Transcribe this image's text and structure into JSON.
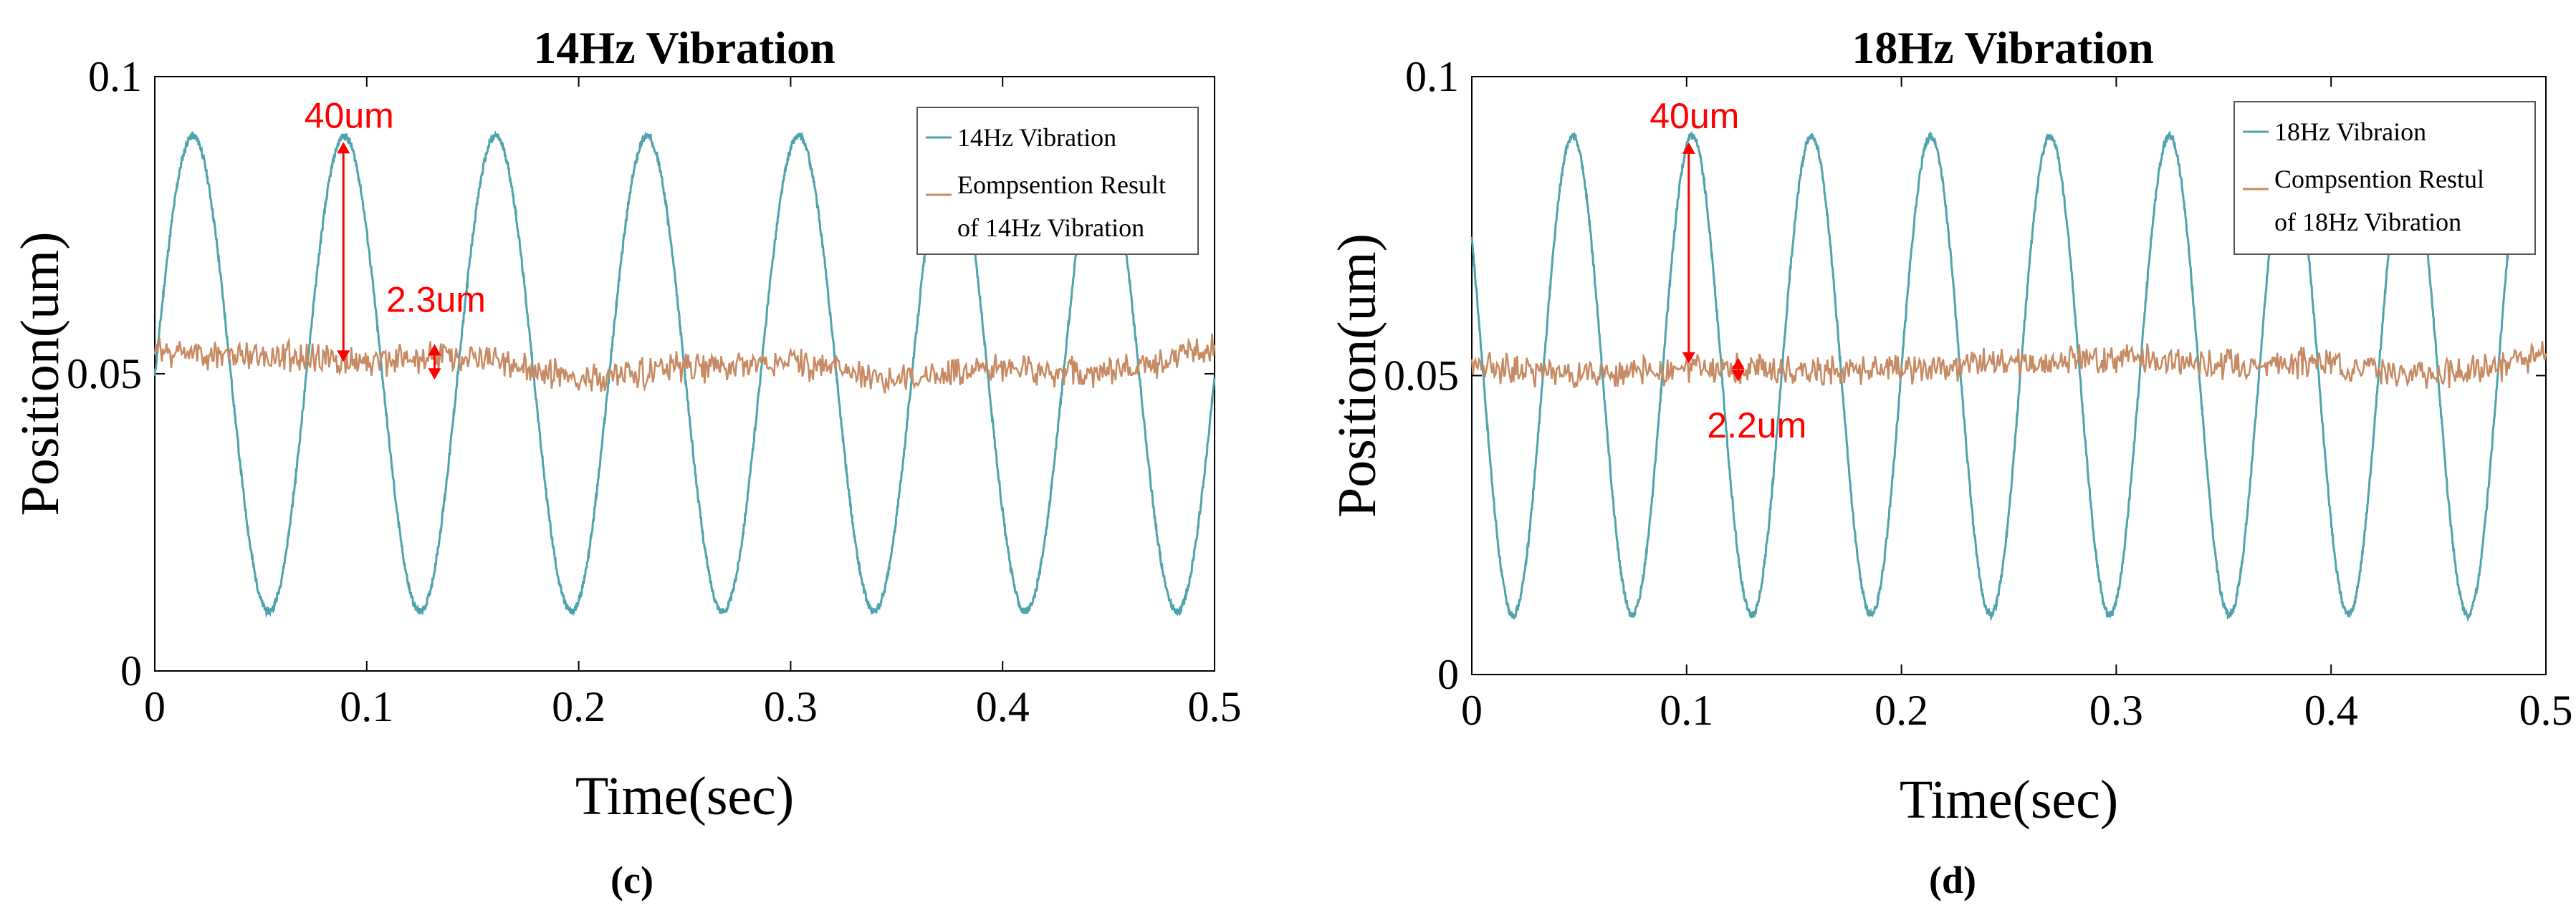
{
  "figure": {
    "panels": [
      "(c)",
      "(d)"
    ]
  },
  "colors": {
    "vibration": "#4ea3ad",
    "compensation": "#c78a63",
    "annotation": "#ff0000",
    "axis": "#000000"
  },
  "chart_data": [
    {
      "type": "line",
      "title": "14Hz Vibration",
      "xlabel": "Time(sec)",
      "ylabel": "Position(um)",
      "xlim": [
        0,
        0.5
      ],
      "ylim": [
        0,
        0.1
      ],
      "xticks": [
        "0",
        "0.1",
        "0.2",
        "0.3",
        "0.4",
        "0.5"
      ],
      "yticks": [
        "0",
        "0.05",
        "0.1"
      ],
      "legend": {
        "placement": "top-right",
        "entries": [
          "14Hz Vibration",
          "Eompsention Result",
          "of 14Hz Vibration"
        ]
      },
      "series": [
        {
          "name": "14Hz Vibration",
          "kind": "sine",
          "frequency_hz": 14,
          "center": 0.05,
          "amplitude": 0.04,
          "peak_time": 0.018,
          "x_start": 0,
          "x_end": 0.5
        },
        {
          "name": "Eompsention Result of 14Hz Vibration",
          "kind": "noise",
          "center": 0.052,
          "x_start": 0,
          "x_end": 0.5,
          "points": [
            [
              0,
              0.054
            ],
            [
              0.05,
              0.053
            ],
            [
              0.1,
              0.052
            ],
            [
              0.15,
              0.053
            ],
            [
              0.2,
              0.049
            ],
            [
              0.25,
              0.051
            ],
            [
              0.3,
              0.052
            ],
            [
              0.35,
              0.049
            ],
            [
              0.4,
              0.051
            ],
            [
              0.45,
              0.05
            ],
            [
              0.5,
              0.054
            ]
          ]
        }
      ],
      "annotations": [
        {
          "text": "40um",
          "x": 0.089,
          "y_from": 0.052,
          "y_to": 0.089
        },
        {
          "text": "2.3um",
          "x": 0.132,
          "y_from": 0.049,
          "y_to": 0.055
        }
      ]
    },
    {
      "type": "line",
      "title": "18Hz Vibration",
      "xlabel": "Time(sec)",
      "ylabel": "Position(um)",
      "xlim": [
        0,
        0.5
      ],
      "ylim": [
        0,
        0.1
      ],
      "xticks": [
        "0",
        "0.1",
        "0.2",
        "0.3",
        "0.4",
        "0.5"
      ],
      "yticks": [
        "0",
        "0.05",
        "0.1"
      ],
      "legend": {
        "placement": "top-right",
        "entries": [
          "18Hz Vibraion",
          "Compsention Restul",
          "of 18Hz Vibration"
        ]
      },
      "series": [
        {
          "name": "18Hz Vibraion",
          "kind": "sine",
          "frequency_hz": 18,
          "center": 0.05,
          "amplitude": 0.04,
          "peak_time": 0.047,
          "x_start": 0,
          "x_end": 0.49
        },
        {
          "name": "Compsention Restul of 18Hz Vibration",
          "kind": "noise",
          "center": 0.051,
          "x_start": 0,
          "x_end": 0.5,
          "points": [
            [
              0,
              0.052
            ],
            [
              0.05,
              0.05
            ],
            [
              0.1,
              0.051
            ],
            [
              0.15,
              0.051
            ],
            [
              0.2,
              0.051
            ],
            [
              0.25,
              0.052
            ],
            [
              0.3,
              0.053
            ],
            [
              0.35,
              0.052
            ],
            [
              0.4,
              0.052
            ],
            [
              0.45,
              0.05
            ],
            [
              0.5,
              0.053
            ]
          ]
        }
      ],
      "annotations": [
        {
          "text": "40um",
          "x": 0.101,
          "y_from": 0.052,
          "y_to": 0.089
        },
        {
          "text": "2.2um",
          "x": 0.124,
          "y_from": 0.049,
          "y_to": 0.053
        }
      ]
    }
  ]
}
